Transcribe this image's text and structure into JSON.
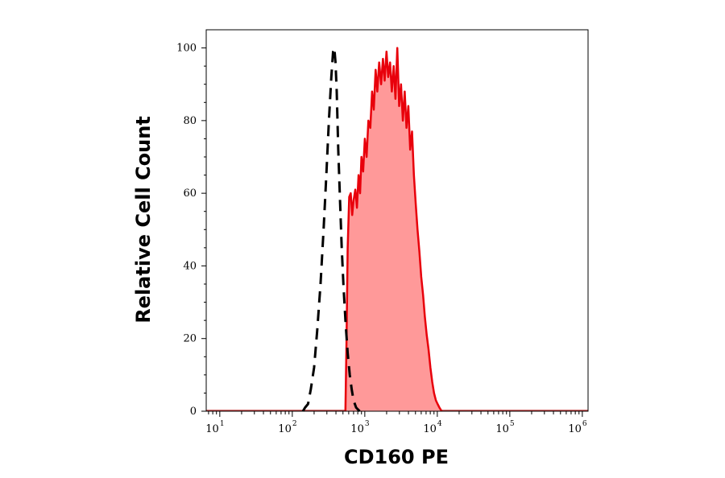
{
  "chart_data": {
    "type": "area",
    "xlabel": "CD160 PE",
    "ylabel": "Relative Cell Count",
    "x_scale": "log",
    "xlim": [
      6.5,
      1200000
    ],
    "ylim": [
      0,
      105
    ],
    "x_ticks": [
      {
        "base": "10",
        "exp": "1",
        "value": 10
      },
      {
        "base": "10",
        "exp": "2",
        "value": 100
      },
      {
        "base": "10",
        "exp": "3",
        "value": 1000
      },
      {
        "base": "10",
        "exp": "4",
        "value": 10000
      },
      {
        "base": "10",
        "exp": "5",
        "value": 100000
      },
      {
        "base": "10",
        "exp": "6",
        "value": 1000000
      }
    ],
    "y_ticks": [
      "0",
      "20",
      "40",
      "60",
      "80",
      "100"
    ],
    "grid": false,
    "series": [
      {
        "style": "dashed-line",
        "color": "#000000",
        "points": [
          [
            140,
            0
          ],
          [
            150,
            1
          ],
          [
            165,
            2
          ],
          [
            180,
            6
          ],
          [
            200,
            12
          ],
          [
            220,
            22
          ],
          [
            245,
            35
          ],
          [
            270,
            50
          ],
          [
            295,
            65
          ],
          [
            320,
            80
          ],
          [
            345,
            92
          ],
          [
            365,
            99
          ],
          [
            380,
            100
          ],
          [
            395,
            96
          ],
          [
            410,
            88
          ],
          [
            430,
            72
          ],
          [
            455,
            58
          ],
          [
            480,
            45
          ],
          [
            510,
            34
          ],
          [
            545,
            24
          ],
          [
            580,
            16
          ],
          [
            620,
            10
          ],
          [
            660,
            6
          ],
          [
            700,
            3
          ],
          [
            760,
            1
          ],
          [
            850,
            0
          ]
        ]
      },
      {
        "style": "filled",
        "color": "#e8000b",
        "fill": "#ff9999",
        "points": [
          [
            540,
            0
          ],
          [
            560,
            20
          ],
          [
            580,
            45
          ],
          [
            610,
            59
          ],
          [
            640,
            60
          ],
          [
            670,
            54
          ],
          [
            700,
            58
          ],
          [
            740,
            61
          ],
          [
            780,
            56
          ],
          [
            820,
            65
          ],
          [
            860,
            60
          ],
          [
            900,
            70
          ],
          [
            950,
            66
          ],
          [
            1000,
            75
          ],
          [
            1060,
            70
          ],
          [
            1120,
            80
          ],
          [
            1190,
            78
          ],
          [
            1260,
            88
          ],
          [
            1330,
            83
          ],
          [
            1410,
            94
          ],
          [
            1490,
            88
          ],
          [
            1580,
            96
          ],
          [
            1680,
            90
          ],
          [
            1780,
            97
          ],
          [
            1880,
            91
          ],
          [
            1990,
            99
          ],
          [
            2100,
            92
          ],
          [
            2230,
            96
          ],
          [
            2360,
            88
          ],
          [
            2500,
            95
          ],
          [
            2650,
            86
          ],
          [
            2810,
            100
          ],
          [
            2980,
            84
          ],
          [
            3160,
            90
          ],
          [
            3350,
            80
          ],
          [
            3550,
            88
          ],
          [
            3760,
            78
          ],
          [
            3990,
            84
          ],
          [
            4230,
            72
          ],
          [
            4480,
            77
          ],
          [
            4750,
            65
          ],
          [
            5040,
            57
          ],
          [
            5340,
            50
          ],
          [
            5660,
            44
          ],
          [
            6000,
            37
          ],
          [
            6360,
            32
          ],
          [
            6740,
            26
          ],
          [
            7150,
            21
          ],
          [
            7580,
            17
          ],
          [
            8030,
            12
          ],
          [
            8510,
            8
          ],
          [
            9020,
            5
          ],
          [
            9560,
            3
          ],
          [
            10100,
            2
          ],
          [
            10700,
            1
          ],
          [
            11500,
            0
          ]
        ]
      }
    ]
  }
}
